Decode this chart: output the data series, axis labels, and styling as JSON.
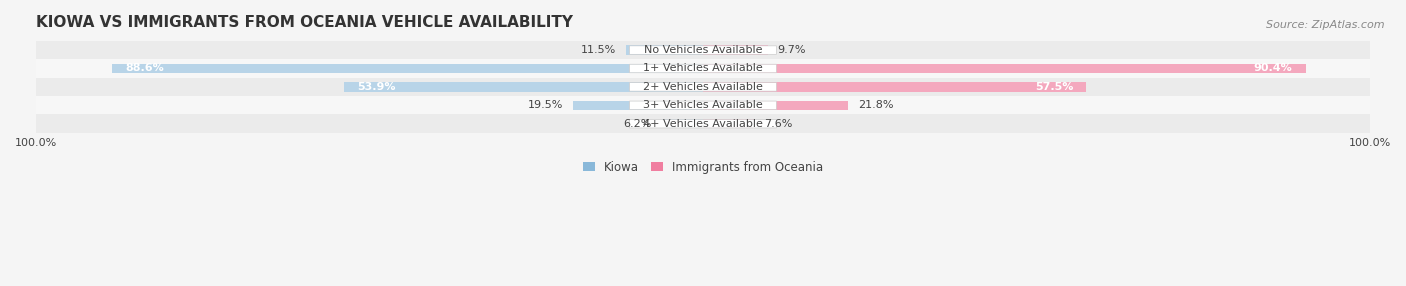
{
  "title": "KIOWA VS IMMIGRANTS FROM OCEANIA VEHICLE AVAILABILITY",
  "source": "Source: ZipAtlas.com",
  "categories": [
    "No Vehicles Available",
    "1+ Vehicles Available",
    "2+ Vehicles Available",
    "3+ Vehicles Available",
    "4+ Vehicles Available"
  ],
  "kiowa_values": [
    11.5,
    88.6,
    53.9,
    19.5,
    6.2
  ],
  "oceania_values": [
    9.7,
    90.4,
    57.5,
    21.8,
    7.6
  ],
  "kiowa_color": "#89b8d9",
  "oceania_color": "#f07ea0",
  "kiowa_color_pale": "#b8d4e8",
  "oceania_color_pale": "#f4a8be",
  "bar_height": 0.52,
  "row_bg_colors": [
    "#ebebeb",
    "#f7f7f7"
  ],
  "bg_color": "#f5f5f5",
  "label_color": "#444444",
  "title_color": "#333333",
  "source_color": "#888888",
  "max_val": 100.0,
  "legend_kiowa": "Kiowa",
  "legend_oceania": "Immigrants from Oceania",
  "title_fontsize": 11,
  "source_fontsize": 8,
  "bar_label_fontsize": 8,
  "cat_label_fontsize": 8
}
